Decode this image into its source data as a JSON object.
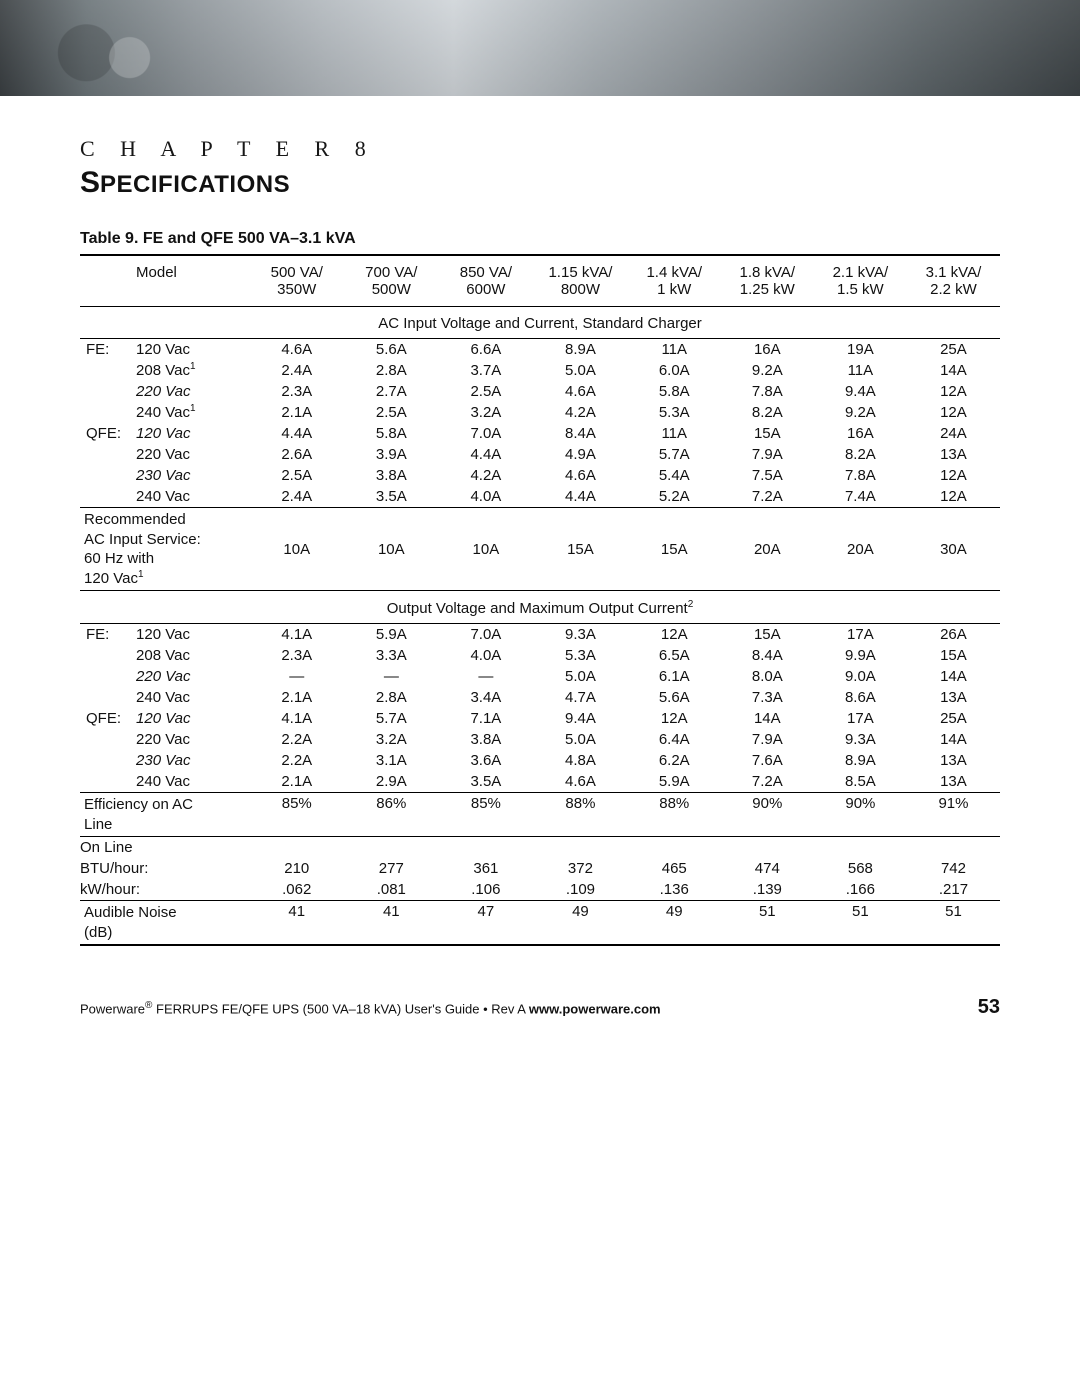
{
  "chapter_label": "C H A P T E R   8",
  "title_first": "S",
  "title_rest": "PECIFICATIONS",
  "table_title": "Table 9. FE and QFE 500 VA–3.1 kVA",
  "columns": [
    {
      "top": "Model",
      "bottom": ""
    },
    {
      "top": "500 VA/",
      "bottom": "350W"
    },
    {
      "top": "700 VA/",
      "bottom": "500W"
    },
    {
      "top": "850 VA/",
      "bottom": "600W"
    },
    {
      "top": "1.15 kVA/",
      "bottom": "800W"
    },
    {
      "top": "1.4 kVA/",
      "bottom": "1 kW"
    },
    {
      "top": "1.8 kVA/",
      "bottom": "1.25 kW"
    },
    {
      "top": "2.1 kVA/",
      "bottom": "1.5 kW"
    },
    {
      "top": "3.1 kVA/",
      "bottom": "2.2 kW"
    }
  ],
  "section1": "AC Input Voltage and Current, Standard Charger",
  "section1_rows": [
    {
      "prefix": "FE:",
      "label": "120 Vac",
      "italic": false,
      "sup": "",
      "v": [
        "4.6A",
        "5.6A",
        "6.6A",
        "8.9A",
        "11A",
        "16A",
        "19A",
        "25A"
      ]
    },
    {
      "prefix": "",
      "label": "208 Vac",
      "italic": false,
      "sup": "1",
      "v": [
        "2.4A",
        "2.8A",
        "3.7A",
        "5.0A",
        "6.0A",
        "9.2A",
        "11A",
        "14A"
      ]
    },
    {
      "prefix": "",
      "label": "220 Vac",
      "italic": true,
      "sup": "",
      "v": [
        "2.3A",
        "2.7A",
        "2.5A",
        "4.6A",
        "5.8A",
        "7.8A",
        "9.4A",
        "12A"
      ]
    },
    {
      "prefix": "",
      "label": "240 Vac",
      "italic": false,
      "sup": "1",
      "v": [
        "2.1A",
        "2.5A",
        "3.2A",
        "4.2A",
        "5.3A",
        "8.2A",
        "9.2A",
        "12A"
      ]
    },
    {
      "prefix": "QFE:",
      "label": "120 Vac",
      "italic": true,
      "sup": "",
      "v": [
        "4.4A",
        "5.8A",
        "7.0A",
        "8.4A",
        "11A",
        "15A",
        "16A",
        "24A"
      ]
    },
    {
      "prefix": "",
      "label": "220 Vac",
      "italic": false,
      "sup": "",
      "v": [
        "2.6A",
        "3.9A",
        "4.4A",
        "4.9A",
        "5.7A",
        "7.9A",
        "8.2A",
        "13A"
      ]
    },
    {
      "prefix": "",
      "label": "230 Vac",
      "italic": true,
      "sup": "",
      "v": [
        "2.5A",
        "3.8A",
        "4.2A",
        "4.6A",
        "5.4A",
        "7.5A",
        "7.8A",
        "12A"
      ]
    },
    {
      "prefix": "",
      "label": "240 Vac",
      "italic": false,
      "sup": "",
      "v": [
        "2.4A",
        "3.5A",
        "4.0A",
        "4.4A",
        "5.2A",
        "7.2A",
        "7.4A",
        "12A"
      ]
    }
  ],
  "recommended_label_l1": "Recommended",
  "recommended_label_l2": "AC Input Service:",
  "recommended_label_l3": "60 Hz with",
  "recommended_label_l4": "120 Vac",
  "recommended_sup": "1",
  "recommended_v": [
    "10A",
    "10A",
    "10A",
    "15A",
    "15A",
    "20A",
    "20A",
    "30A"
  ],
  "section2": "Output Voltage and Maximum Output Current",
  "section2_sup": "2",
  "section2_rows": [
    {
      "prefix": "FE:",
      "label": "120 Vac",
      "italic": false,
      "sup": "",
      "v": [
        "4.1A",
        "5.9A",
        "7.0A",
        "9.3A",
        "12A",
        "15A",
        "17A",
        "26A"
      ]
    },
    {
      "prefix": "",
      "label": "208 Vac",
      "italic": false,
      "sup": "",
      "v": [
        "2.3A",
        "3.3A",
        "4.0A",
        "5.3A",
        "6.5A",
        "8.4A",
        "9.9A",
        "15A"
      ]
    },
    {
      "prefix": "",
      "label": "220 Vac",
      "italic": true,
      "sup": "",
      "v": [
        "—",
        "—",
        "—",
        "5.0A",
        "6.1A",
        "8.0A",
        "9.0A",
        "14A"
      ]
    },
    {
      "prefix": "",
      "label": "240 Vac",
      "italic": false,
      "sup": "",
      "v": [
        "2.1A",
        "2.8A",
        "3.4A",
        "4.7A",
        "5.6A",
        "7.3A",
        "8.6A",
        "13A"
      ]
    },
    {
      "prefix": "QFE:",
      "label": "120 Vac",
      "italic": true,
      "sup": "",
      "v": [
        "4.1A",
        "5.7A",
        "7.1A",
        "9.4A",
        "12A",
        "14A",
        "17A",
        "25A"
      ]
    },
    {
      "prefix": "",
      "label": "220 Vac",
      "italic": false,
      "sup": "",
      "v": [
        "2.2A",
        "3.2A",
        "3.8A",
        "5.0A",
        "6.4A",
        "7.9A",
        "9.3A",
        "14A"
      ]
    },
    {
      "prefix": "",
      "label": "230 Vac",
      "italic": true,
      "sup": "",
      "v": [
        "2.2A",
        "3.1A",
        "3.6A",
        "4.8A",
        "6.2A",
        "7.6A",
        "8.9A",
        "13A"
      ]
    },
    {
      "prefix": "",
      "label": "240 Vac",
      "italic": false,
      "sup": "",
      "v": [
        "2.1A",
        "2.9A",
        "3.5A",
        "4.6A",
        "5.9A",
        "7.2A",
        "8.5A",
        "13A"
      ]
    }
  ],
  "efficiency_label_l1": "Efficiency on AC",
  "efficiency_label_l2": "Line",
  "efficiency_v": [
    "85%",
    "86%",
    "85%",
    "88%",
    "88%",
    "90%",
    "90%",
    "91%"
  ],
  "online_label": "On Line",
  "btu_label": "BTU/hour:",
  "btu_v": [
    "210",
    "277",
    "361",
    "372",
    "465",
    "474",
    "568",
    "742"
  ],
  "kwh_label": "kW/hour:",
  "kwh_v": [
    ".062",
    ".081",
    ".106",
    ".109",
    ".136",
    ".139",
    ".166",
    ".217"
  ],
  "noise_label_l1": "Audible Noise",
  "noise_label_l2": "(dB)",
  "noise_v": [
    "41",
    "41",
    "47",
    "49",
    "49",
    "51",
    "51",
    "51"
  ],
  "footer_left_1": "Powerware",
  "footer_reg": "®",
  "footer_left_2": " FERRUPS FE/QFE UPS (500 VA–18 kVA) User's Guide  •  Rev A ",
  "footer_url": "www.powerware.com",
  "page_number": "53"
}
